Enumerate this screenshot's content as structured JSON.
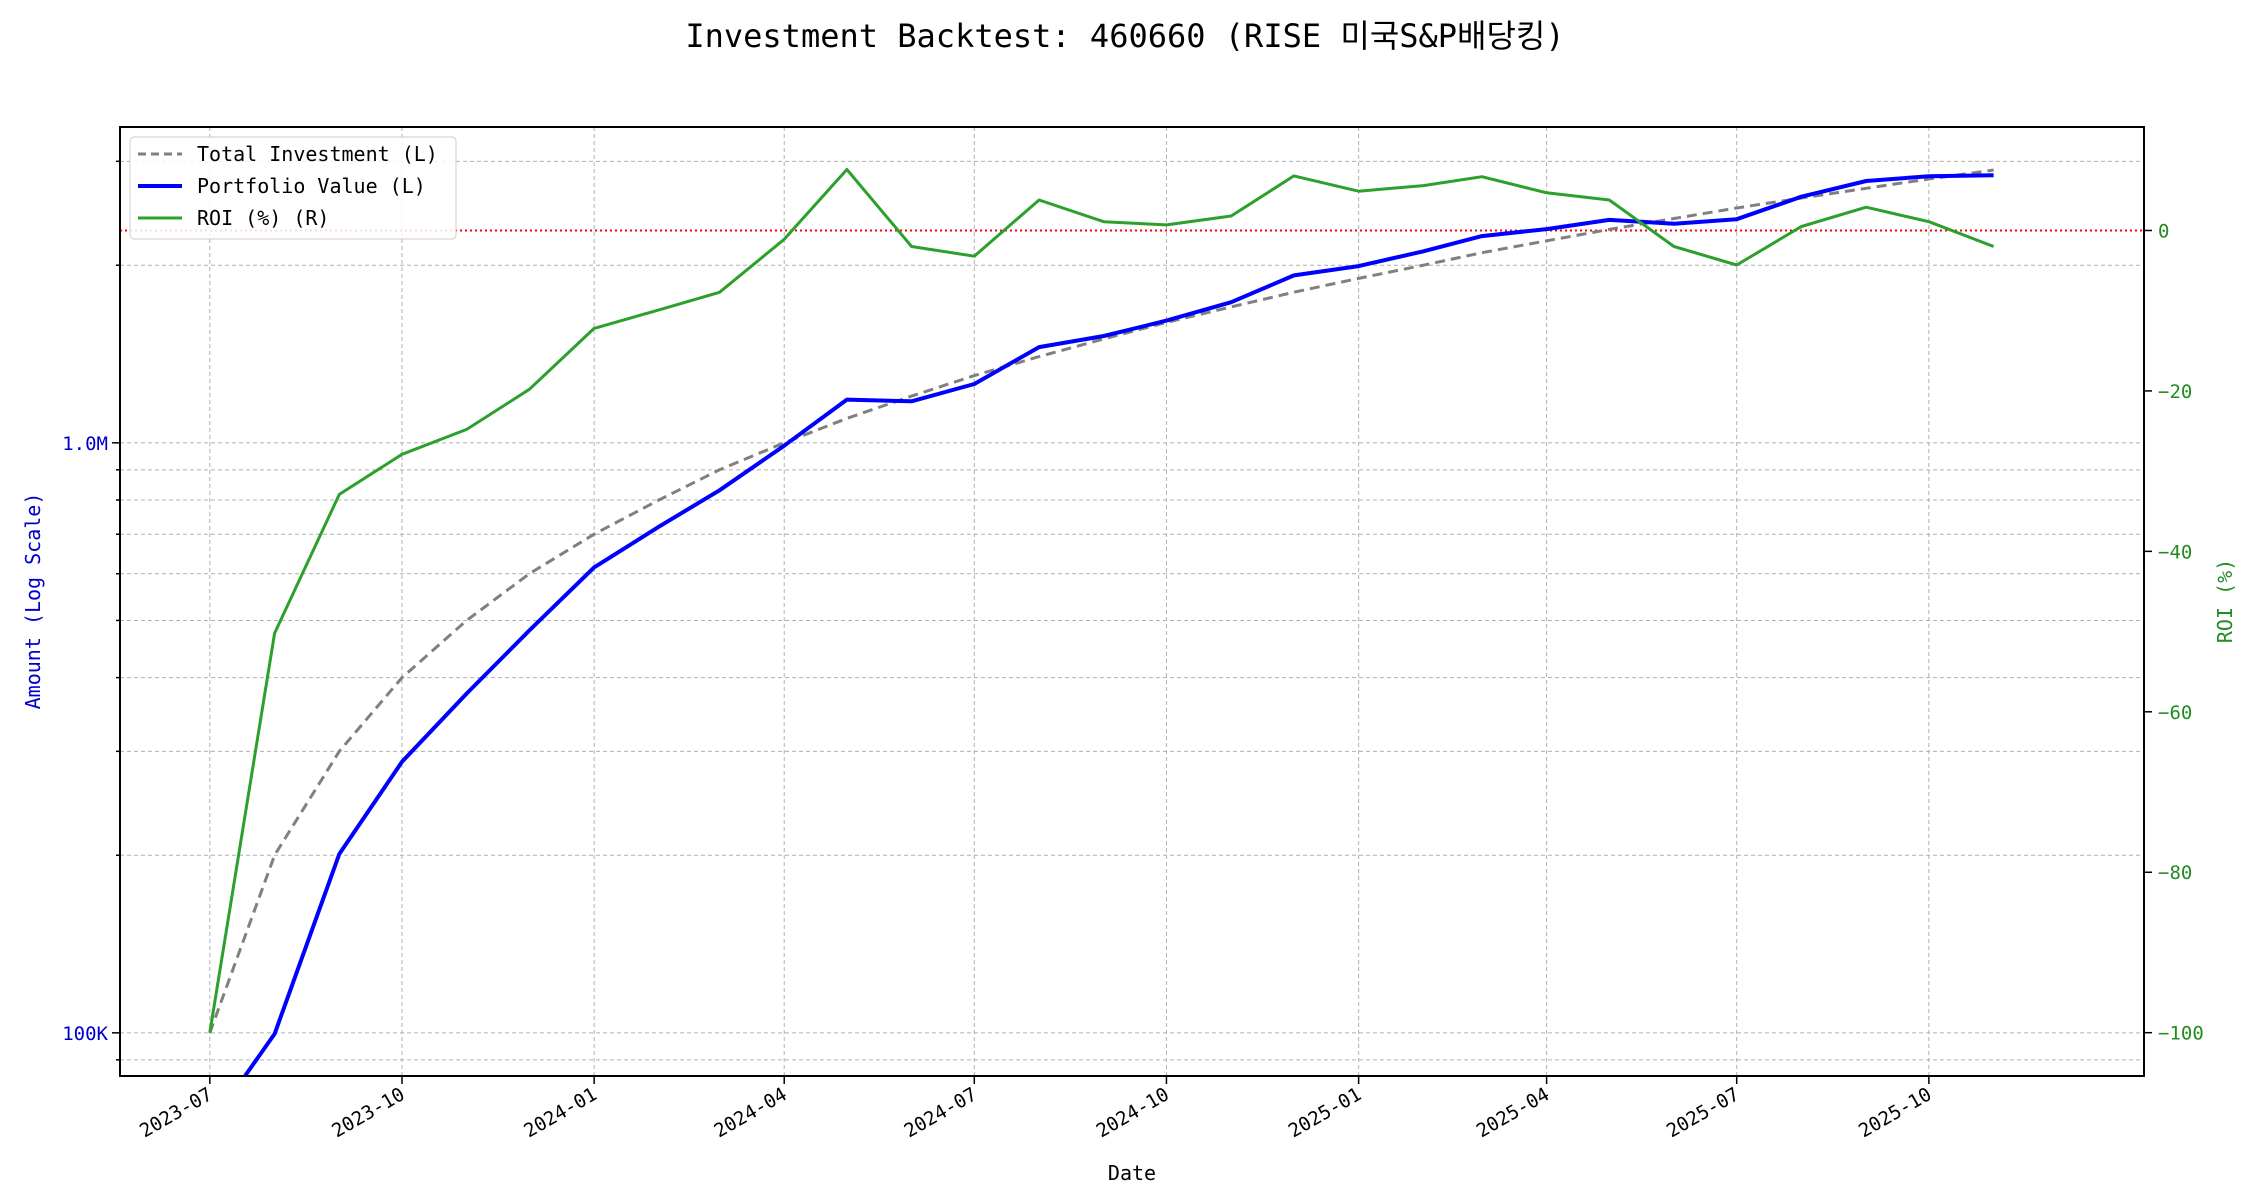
{
  "chart_data": {
    "type": "line",
    "title": "Investment Backtest: 460660 (RISE 미국S&P배당킹)",
    "xlabel": "Date",
    "ylabel_left": "Amount (Log Scale)",
    "ylabel_right": "ROI (%)",
    "left_scale": "log",
    "xlim": [
      "2023-05-19",
      "2026-01-12"
    ],
    "ylim_left": [
      84500,
      3430000
    ],
    "ylim_right": [
      -105.4,
      12.9
    ],
    "grid": true,
    "legend_position": "upper-left",
    "x_ticks": [
      "2023-07",
      "2023-10",
      "2024-01",
      "2024-04",
      "2024-07",
      "2024-10",
      "2025-01",
      "2025-04",
      "2025-07",
      "2025-10"
    ],
    "left_ticks": [
      {
        "value": 100000,
        "label": "100K"
      },
      {
        "value": 1000000,
        "label": "1.0M"
      }
    ],
    "right_ticks": [
      0,
      -20,
      -40,
      -60,
      -80,
      -100
    ],
    "reference_line": {
      "axis": "right",
      "value": 0,
      "color": "#ff0000"
    },
    "colors": {
      "left_axis": "#0000cc",
      "right_axis": "#228b22"
    },
    "x": [
      "2023-07-01",
      "2023-08-01",
      "2023-09-01",
      "2023-10-01",
      "2023-11-01",
      "2023-12-01",
      "2024-01-01",
      "2024-02-01",
      "2024-03-01",
      "2024-04-01",
      "2024-05-01",
      "2024-06-01",
      "2024-07-01",
      "2024-08-01",
      "2024-09-01",
      "2024-10-01",
      "2024-11-01",
      "2024-12-01",
      "2025-01-01",
      "2025-02-01",
      "2025-03-01",
      "2025-04-01",
      "2025-05-01",
      "2025-06-01",
      "2025-07-01",
      "2025-08-01",
      "2025-09-01",
      "2025-10-01",
      "2025-11-01"
    ],
    "series": [
      {
        "name": "Total Investment (L)",
        "axis": "left",
        "color": "#808080",
        "style": "dashed",
        "values": [
          100000,
          200000,
          300000,
          400000,
          500000,
          600000,
          700000,
          800000,
          900000,
          1000000,
          1100000,
          1200000,
          1300000,
          1400000,
          1500000,
          1600000,
          1700000,
          1800000,
          1900000,
          2000000,
          2100000,
          2200000,
          2300000,
          2400000,
          2500000,
          2600000,
          2700000,
          2800000,
          2900000
        ]
      },
      {
        "name": "Portfolio Value (L)",
        "axis": "left",
        "color": "#0000ff",
        "style": "solid",
        "values": [
          0,
          99600,
          201000,
          288000,
          376000,
          481000,
          615000,
          721000,
          831000,
          989000,
          1184000,
          1176000,
          1258000,
          1453000,
          1517000,
          1611000,
          1731000,
          1922000,
          1993000,
          2112000,
          2241000,
          2303000,
          2387000,
          2352000,
          2393000,
          2613000,
          2778000,
          2831000,
          2842000
        ]
      },
      {
        "name": "ROI (%) (R)",
        "axis": "right",
        "color": "#2ca02c",
        "style": "solid",
        "values": [
          -100,
          -50.2,
          -32.9,
          -27.9,
          -24.8,
          -19.8,
          -12.2,
          -9.9,
          -7.7,
          -1.1,
          7.6,
          -2.0,
          -3.2,
          3.8,
          1.1,
          0.7,
          1.8,
          6.8,
          4.9,
          5.6,
          6.7,
          4.7,
          3.8,
          -2.0,
          -4.3,
          0.5,
          2.9,
          1.1,
          -2.0
        ]
      }
    ]
  }
}
